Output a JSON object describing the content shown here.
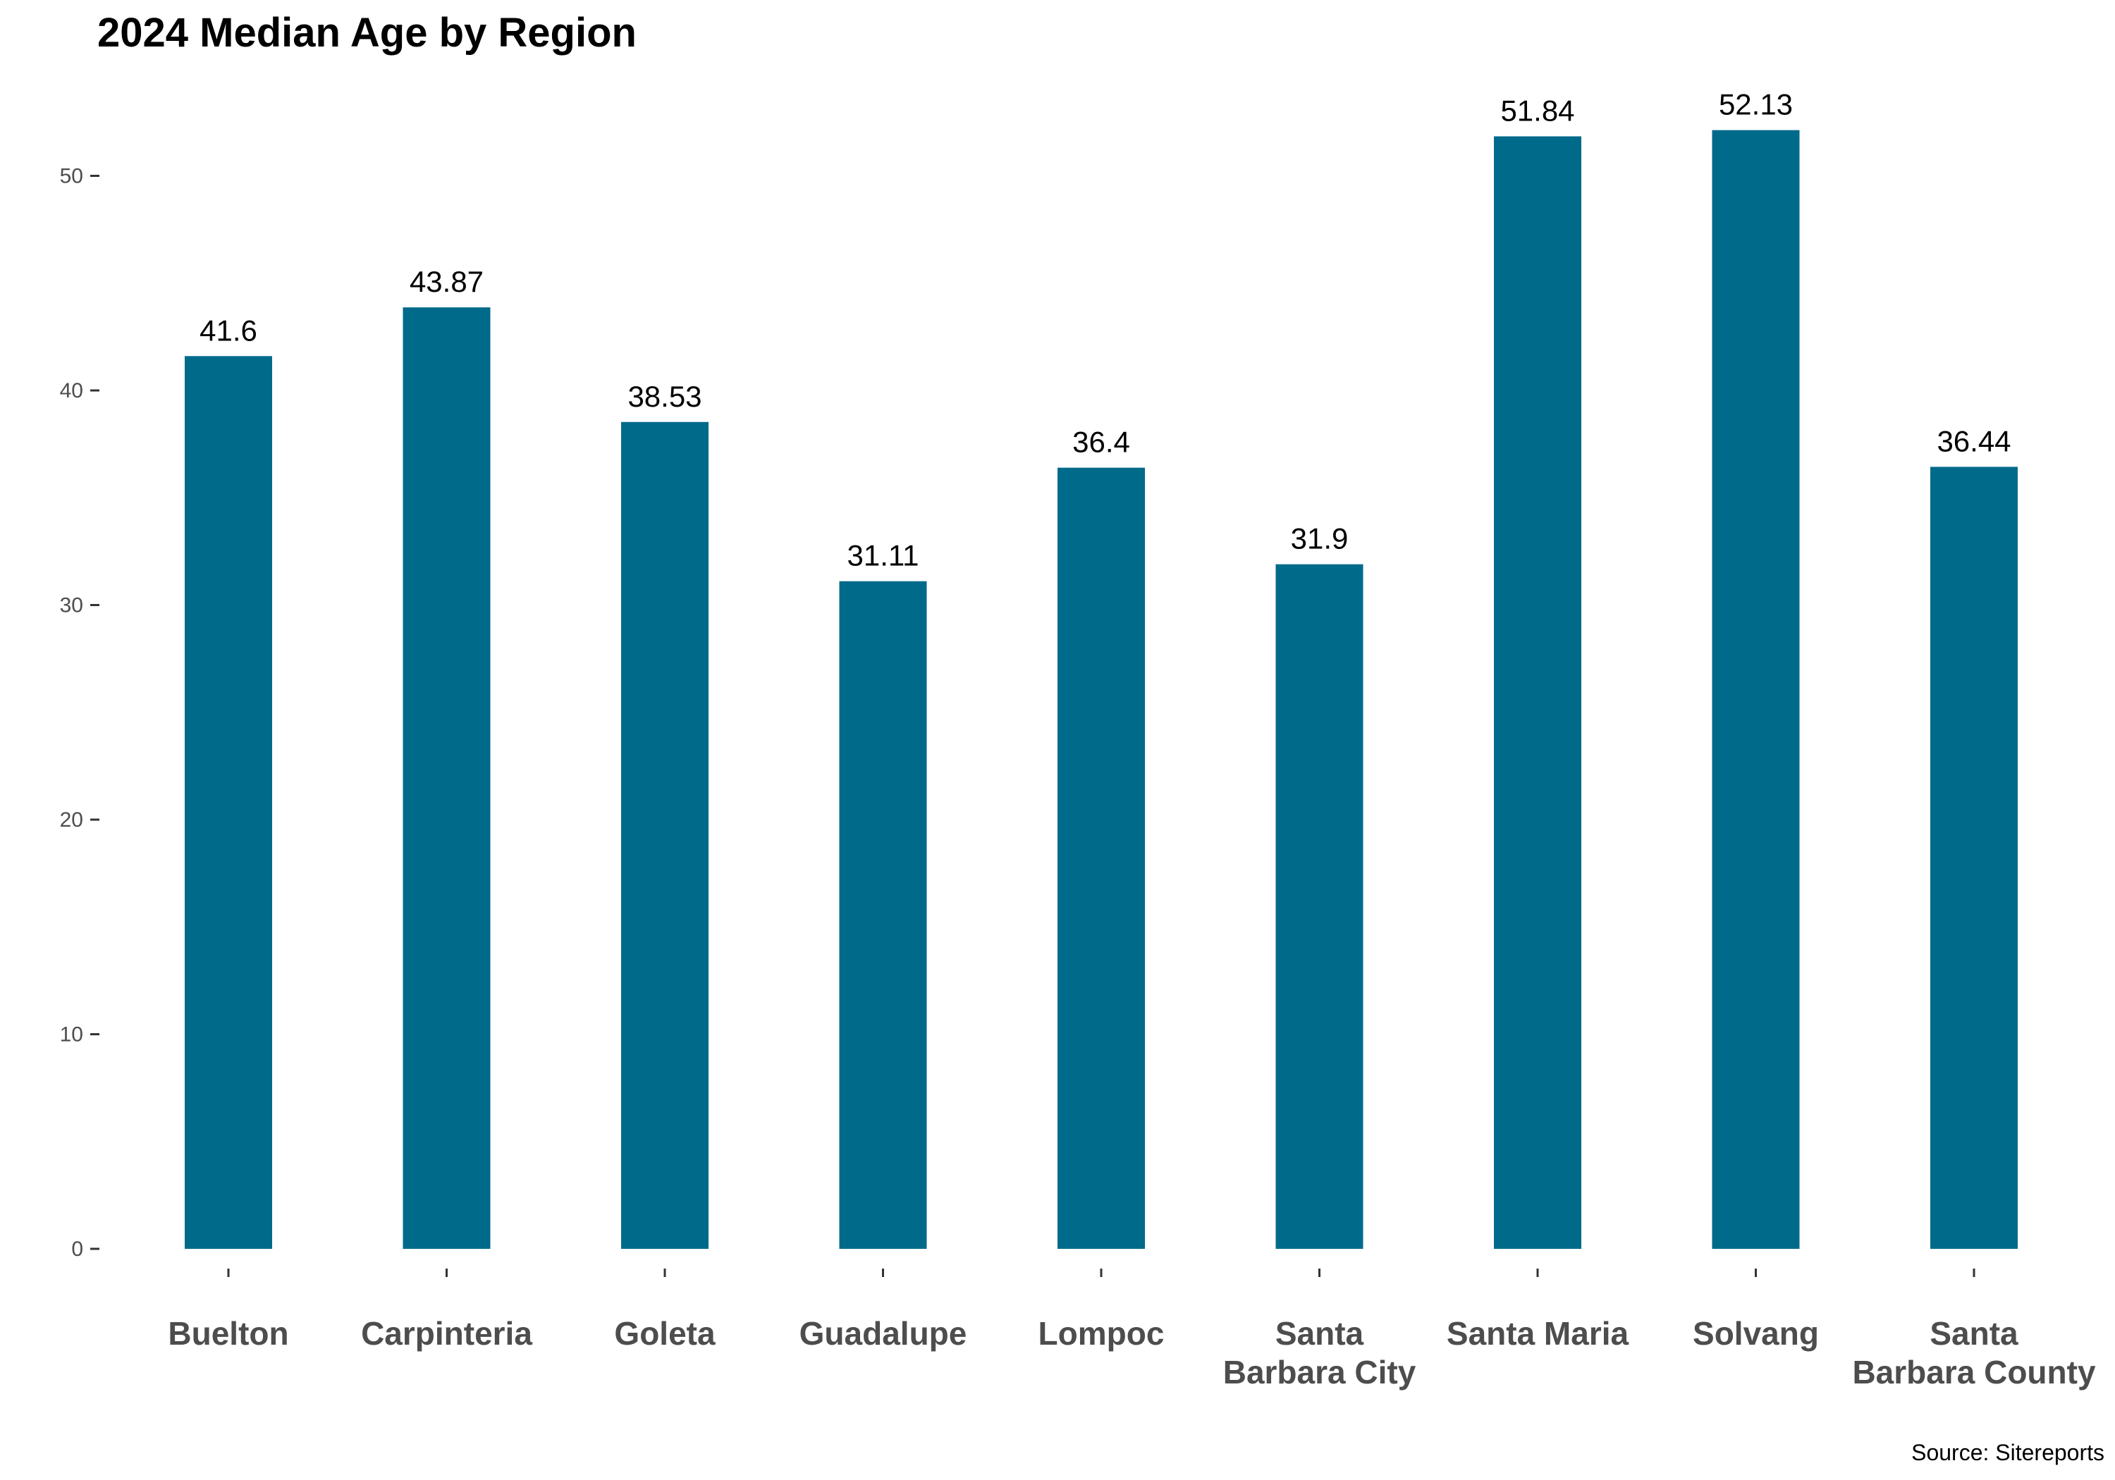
{
  "chart_data": {
    "type": "bar",
    "title": "2024 Median Age by Region",
    "caption": "Source: Sitereports",
    "categories": [
      [
        "Buelton"
      ],
      [
        "Carpinteria"
      ],
      [
        "Goleta"
      ],
      [
        "Guadalupe"
      ],
      [
        "Lompoc"
      ],
      [
        "Santa",
        "Barbara City"
      ],
      [
        "Santa Maria"
      ],
      [
        "Solvang"
      ],
      [
        "Santa",
        "Barbara County"
      ]
    ],
    "values": [
      41.6,
      43.87,
      38.53,
      31.11,
      36.4,
      31.9,
      51.84,
      52.13,
      36.44
    ],
    "value_labels": [
      "41.6",
      "43.87",
      "38.53",
      "31.11",
      "36.4",
      "31.9",
      "51.84",
      "52.13",
      "36.44"
    ],
    "ylim": [
      0,
      55
    ],
    "yticks": [
      0,
      10,
      20,
      30,
      40,
      50
    ],
    "grid": false,
    "legend": "none",
    "bar_color": "#006a8a",
    "xlabel": "",
    "ylabel": ""
  }
}
